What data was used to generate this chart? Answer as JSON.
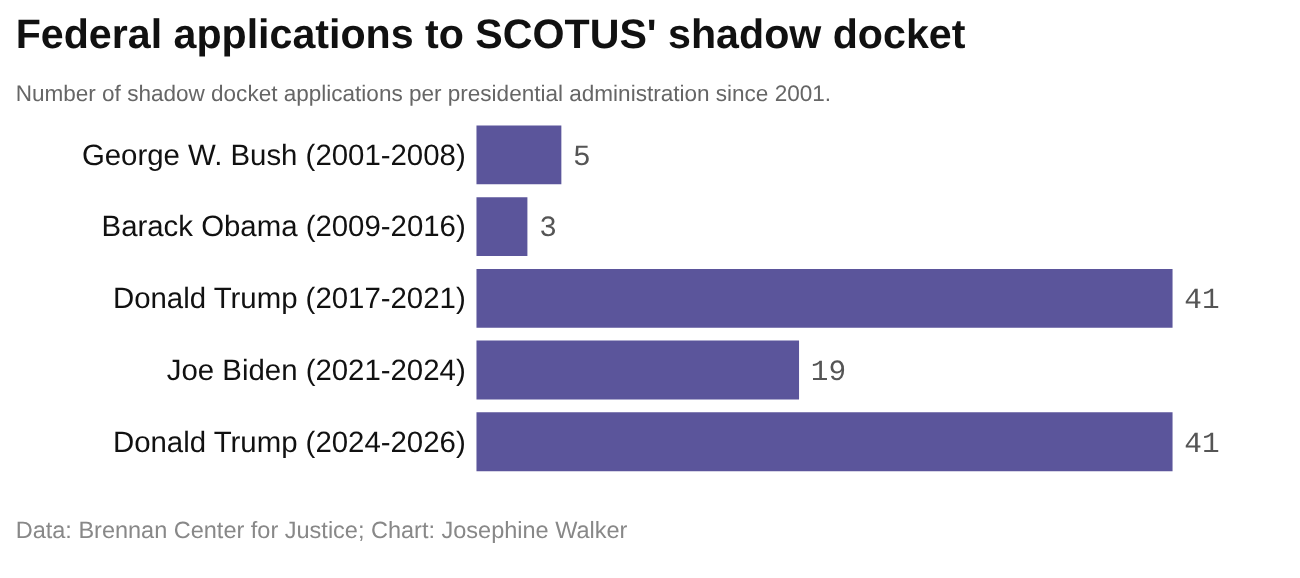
{
  "chart_data": {
    "type": "bar",
    "orientation": "horizontal",
    "title": "Federal applications to SCOTUS' shadow docket",
    "subtitle": "Number of shadow docket applications per presidential administration since 2001.",
    "categories": [
      "George W. Bush (2001-2008)",
      "Barack Obama (2009-2016)",
      "Donald Trump (2017-2021)",
      "Joe Biden (2021-2024)",
      "Donald Trump (2024-2026)"
    ],
    "values": [
      5,
      3,
      41,
      19,
      41
    ],
    "color": "#5b559b",
    "data_labels": true,
    "annotations": [
      "Data: Brennan Center for Justice; Chart: Josephine Walker"
    ]
  }
}
